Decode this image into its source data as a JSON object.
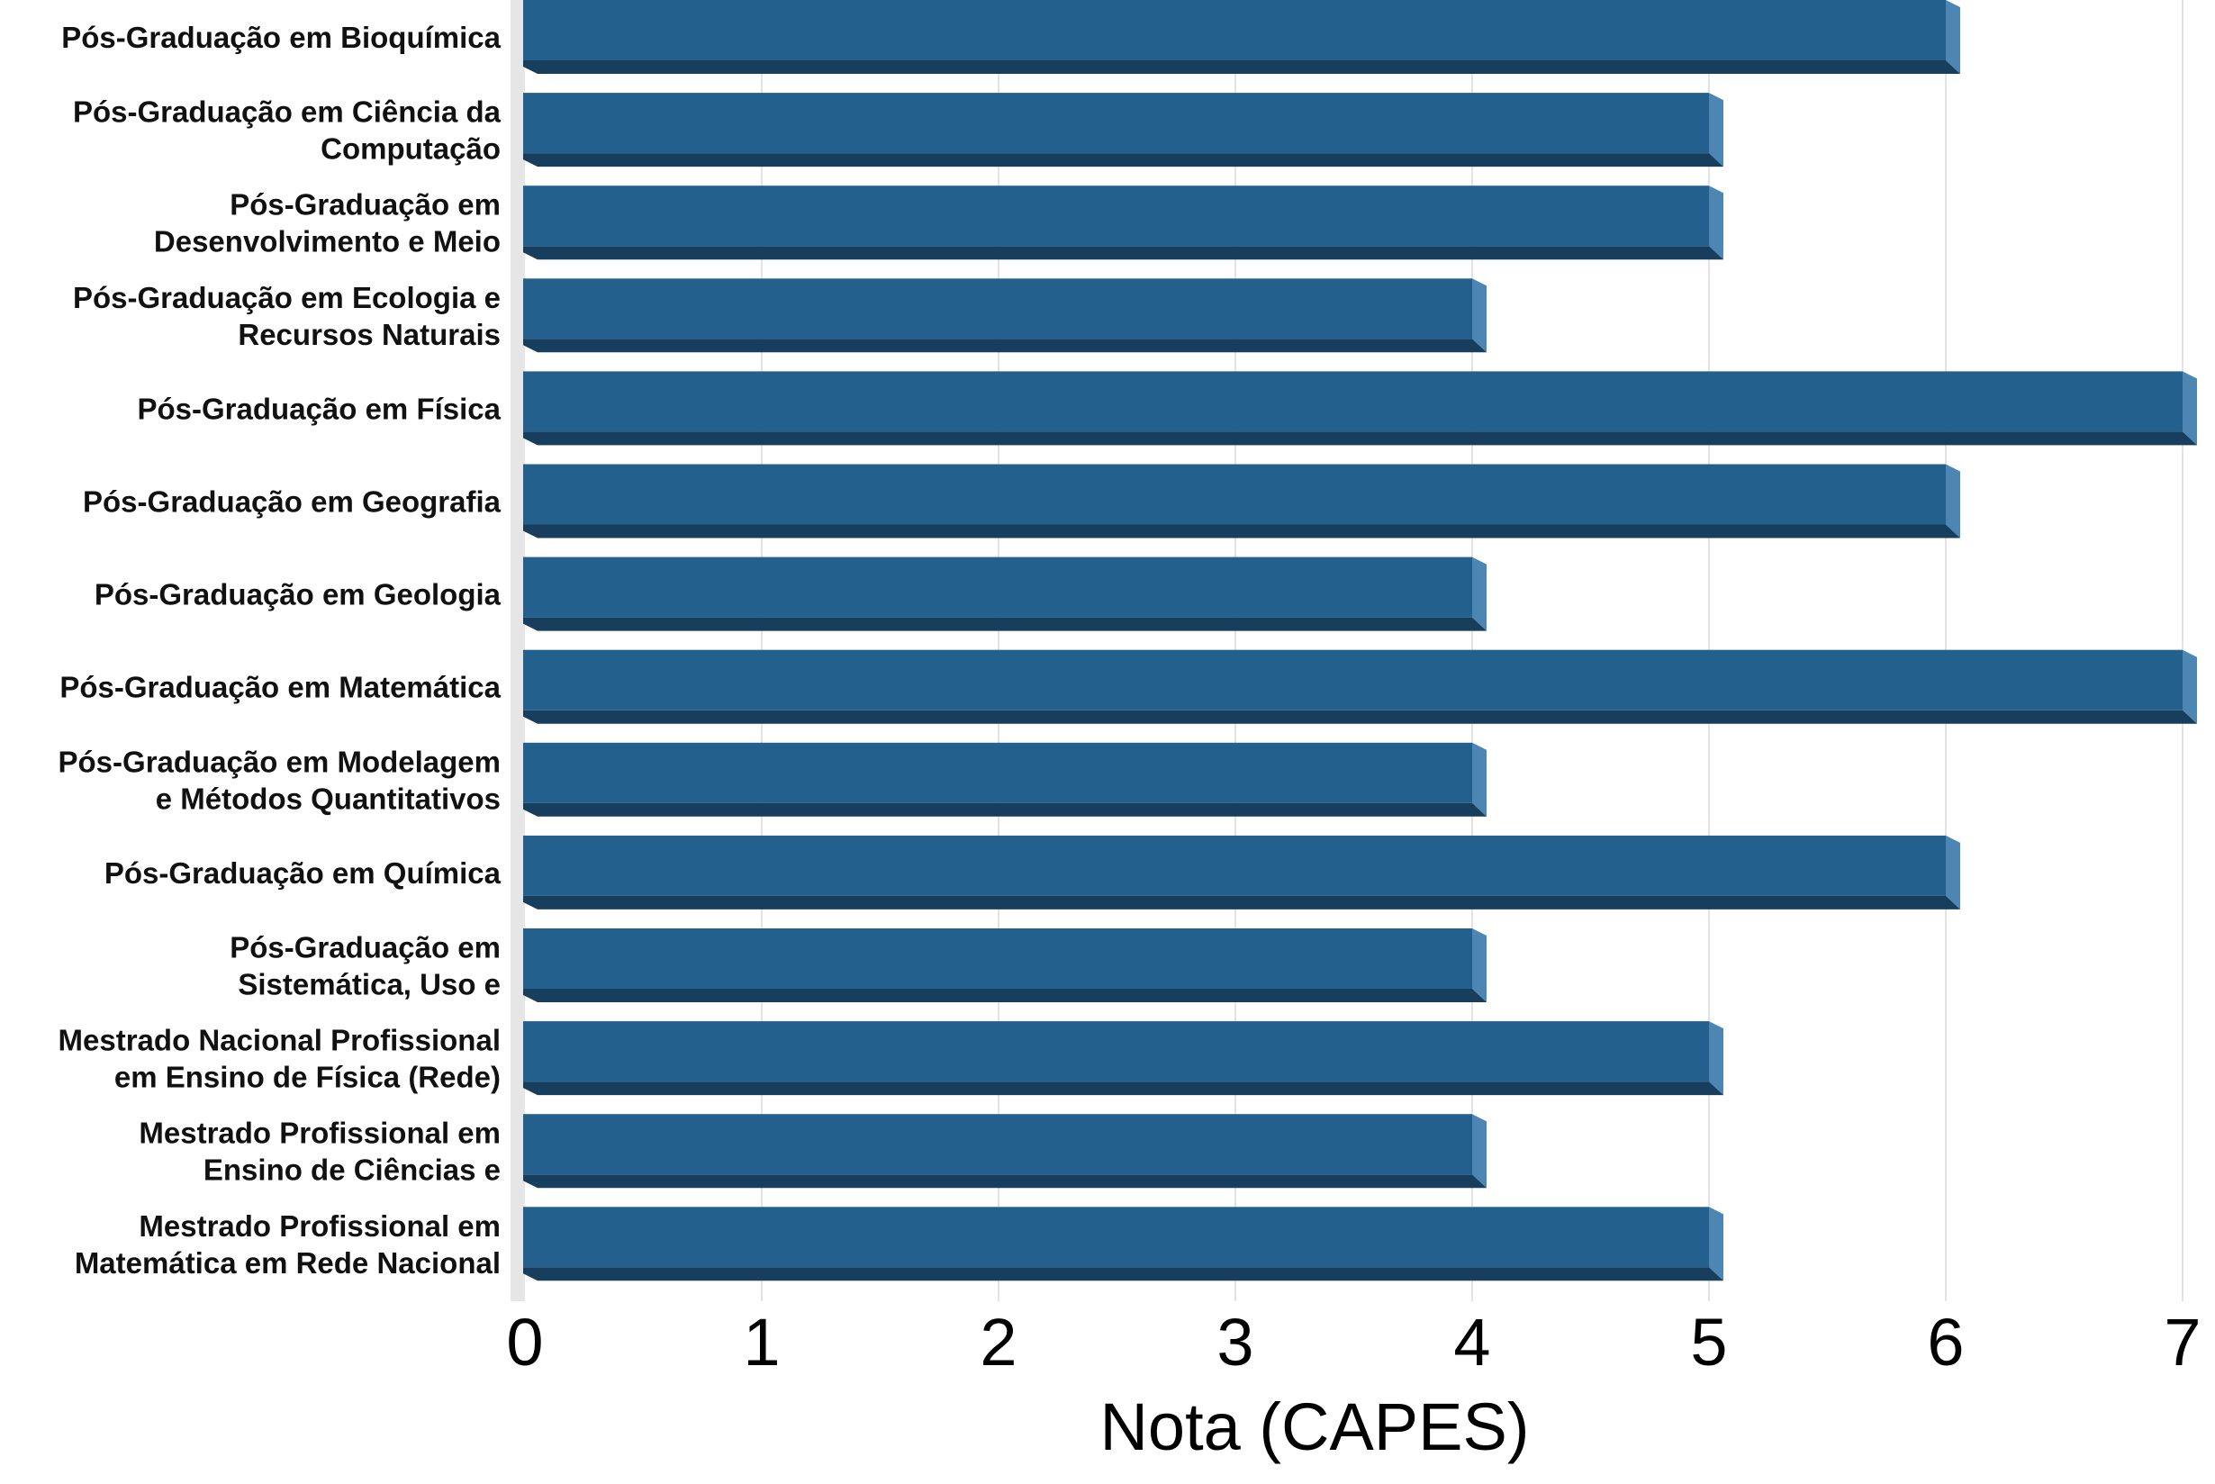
{
  "chart_data": {
    "type": "bar",
    "orientation": "horizontal",
    "categories": [
      [
        "Pós-Graduação em Bioquímica"
      ],
      [
        "Pós-Graduação em Ciência da",
        "Computação"
      ],
      [
        "Pós-Graduação em",
        "Desenvolvimento e Meio"
      ],
      [
        "Pós-Graduação em Ecologia e",
        "Recursos Naturais"
      ],
      [
        "Pós-Graduação em Física"
      ],
      [
        "Pós-Graduação em Geografia"
      ],
      [
        "Pós-Graduação em Geologia"
      ],
      [
        "Pós-Graduação em Matemática"
      ],
      [
        "Pós-Graduação em Modelagem",
        "e Métodos Quantitativos"
      ],
      [
        "Pós-Graduação em Química"
      ],
      [
        "Pós-Graduação em",
        "Sistemática, Uso e"
      ],
      [
        "Mestrado Nacional Profissional",
        "em Ensino de Física (Rede)"
      ],
      [
        "Mestrado Profissional em",
        "Ensino de Ciências e"
      ],
      [
        "Mestrado Profissional em",
        "Matemática em Rede Nacional"
      ]
    ],
    "values": [
      6,
      5,
      5,
      4,
      7,
      6,
      4,
      7,
      4,
      6,
      4,
      5,
      4,
      5
    ],
    "xlabel": "Nota (CAPES)",
    "ylabel": "",
    "xlim": [
      0,
      7
    ],
    "xticks": [
      "0",
      "1",
      "2",
      "3",
      "4",
      "5",
      "6",
      "7"
    ],
    "grid": "vertical",
    "colors": {
      "bar_face": "#23608e",
      "bar_bottom": "#183e5e",
      "bar_end": "#4d86b3",
      "floor": "#e6e6e6",
      "grid": "#e3e3e3"
    }
  }
}
